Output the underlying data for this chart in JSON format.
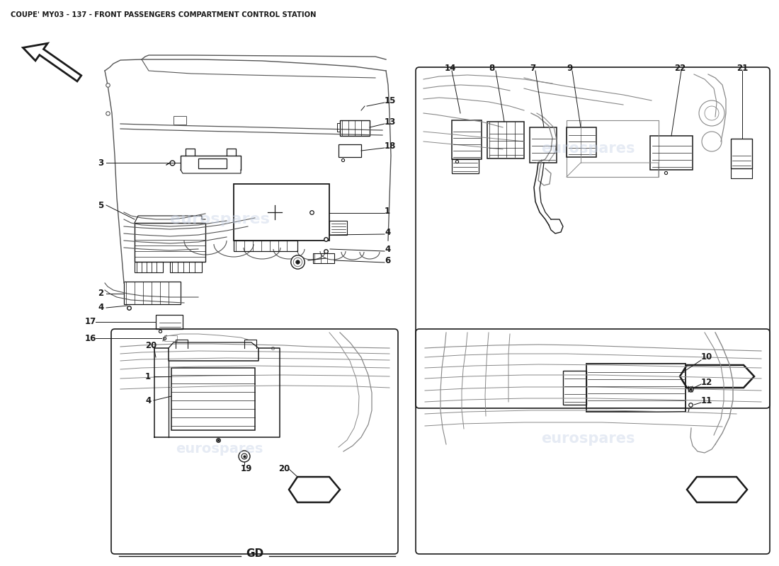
{
  "title": "COUPE' MY03 - 137 - FRONT PASSENGERS COMPARTMENT CONTROL STATION",
  "bg_color": "#ffffff",
  "line_color": "#1a1a1a",
  "sketch_color": "#555555",
  "label_color": "#1a1a1a",
  "watermark_text": "eurospares",
  "watermark_color": "#c8d4e8",
  "watermark_alpha": 0.45,
  "gd_label": "GD",
  "title_fontsize": 7.2,
  "label_fontsize": 8.5
}
